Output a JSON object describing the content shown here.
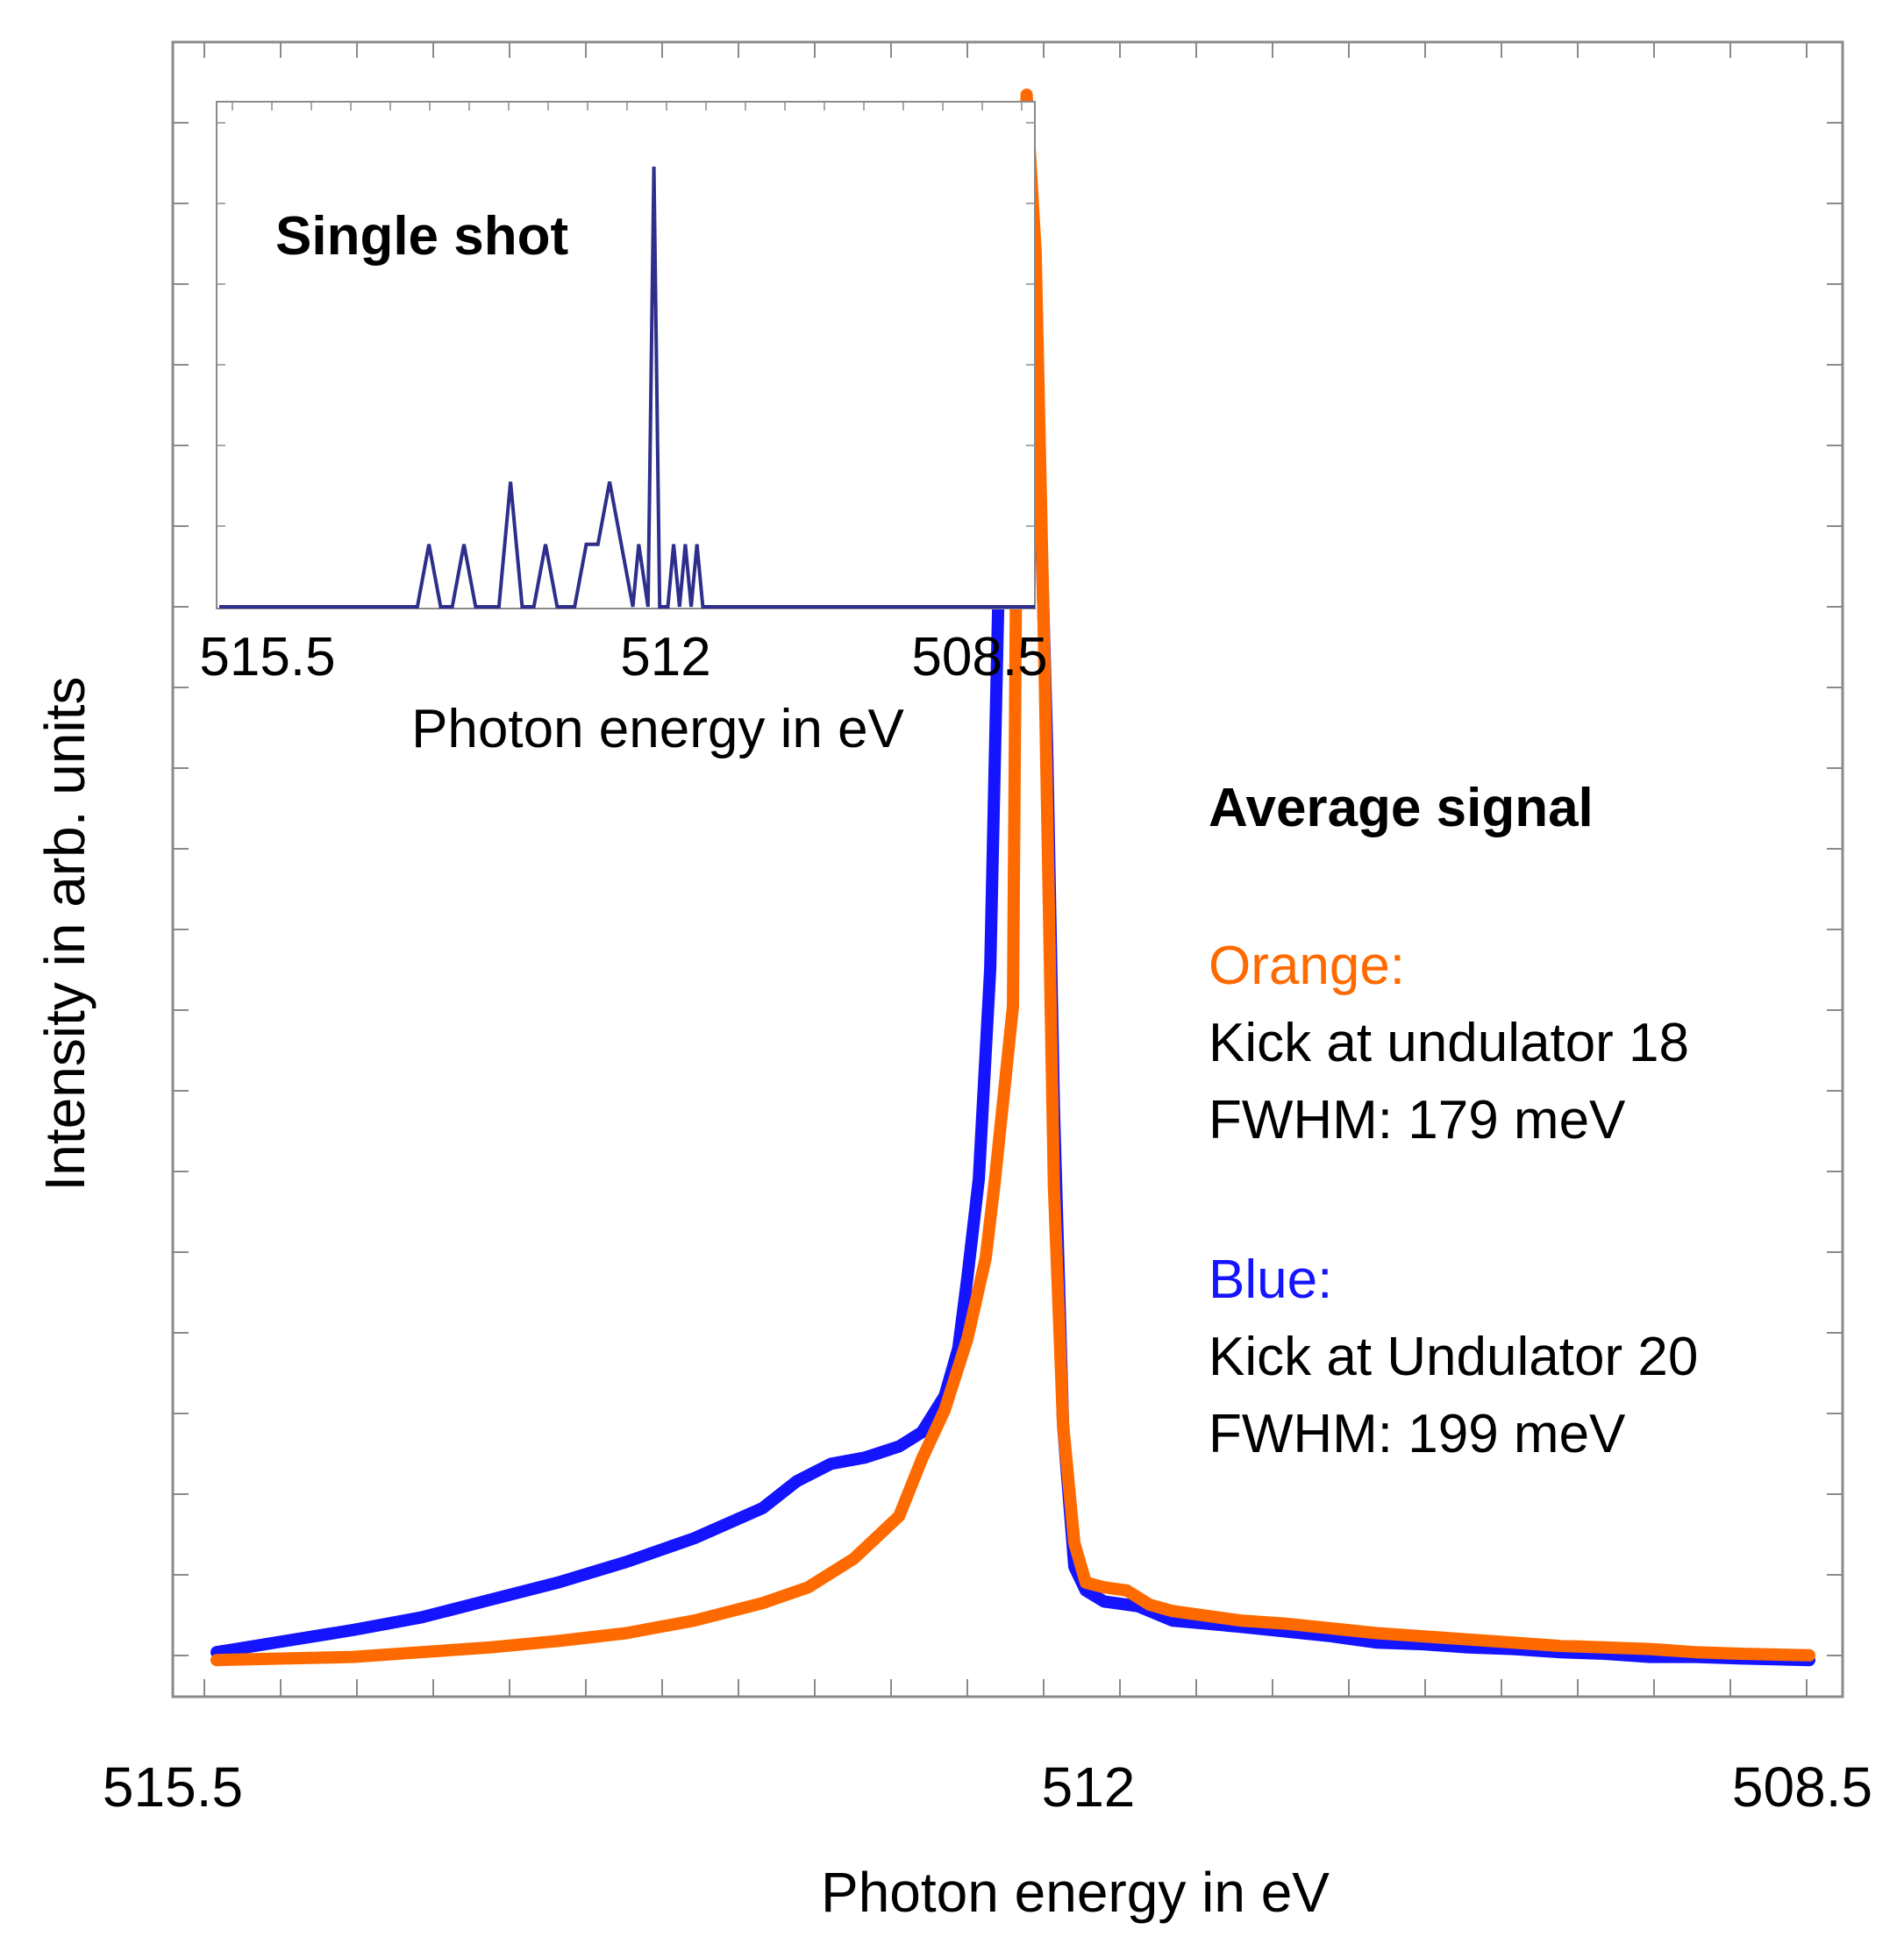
{
  "chart_data": [
    {
      "type": "line",
      "role": "main",
      "xlabel": "Photon energy in eV",
      "ylabel": "Intensity in arb. units",
      "xlim": [
        515.5,
        508.5
      ],
      "x_reversed": true,
      "ylim": [
        0,
        100
      ],
      "xticks": [
        "515.5",
        "512",
        "508.5"
      ],
      "y_tick_labels_shown": false,
      "grid": false,
      "legend": {
        "heading": "Average signal",
        "placement": "right",
        "entries": [
          {
            "label": "Orange:",
            "color": "#ff6a00",
            "lines": [
              "Kick at undulator 18",
              "FWHM: 179 meV"
            ]
          },
          {
            "label": "Blue:",
            "color": "#1414ff",
            "lines": [
              "Kick at Undulator 20",
              "FWHM: 199 meV"
            ]
          }
        ]
      },
      "series": [
        {
          "color": "#1414ff",
          "x": [
            515.5,
            515.2,
            514.9,
            514.6,
            514.3,
            514.0,
            513.7,
            513.4,
            513.1,
            512.95,
            512.8,
            512.65,
            512.5,
            512.4,
            512.3,
            512.24,
            512.2,
            512.15,
            512.1,
            512.05,
            512.0,
            511.95,
            511.9,
            511.85,
            511.82,
            511.78,
            511.73,
            511.68,
            511.6,
            511.45,
            511.3,
            511.15,
            511.0,
            510.8,
            510.6,
            510.4,
            510.2,
            510.0,
            509.8,
            509.6,
            509.4,
            509.2,
            509.0,
            508.8,
            508.5
          ],
          "y": [
            0.6,
            1.3,
            2.0,
            2.8,
            3.9,
            5.0,
            6.3,
            7.8,
            9.7,
            11.4,
            12.5,
            12.9,
            13.6,
            14.5,
            16.8,
            19.8,
            24.3,
            30.5,
            43.8,
            76.3,
            87.0,
            93.5,
            84.0,
            58.0,
            35.0,
            15.0,
            6.0,
            4.5,
            3.8,
            3.5,
            2.6,
            2.4,
            2.2,
            1.9,
            1.6,
            1.2,
            1.1,
            0.9,
            0.8,
            0.6,
            0.5,
            0.3,
            0.3,
            0.2,
            0.1
          ]
        },
        {
          "color": "#ff6a00",
          "x": [
            515.5,
            515.2,
            514.9,
            514.6,
            514.3,
            514.0,
            513.7,
            513.4,
            513.1,
            512.9,
            512.7,
            512.5,
            512.4,
            512.3,
            512.2,
            512.12,
            512.08,
            512.0,
            511.98,
            511.94,
            511.9,
            511.86,
            511.82,
            511.78,
            511.73,
            511.68,
            511.6,
            511.5,
            511.4,
            511.3,
            511.15,
            511.0,
            510.8,
            510.6,
            510.4,
            510.2,
            510.0,
            509.8,
            509.6,
            509.4,
            509.2,
            509.0,
            508.8,
            508.5
          ],
          "y": [
            0.1,
            0.2,
            0.3,
            0.6,
            0.9,
            1.3,
            1.8,
            2.6,
            3.7,
            4.7,
            6.5,
            9.2,
            12.8,
            15.9,
            20.4,
            25.5,
            30.3,
            41.4,
            81.0,
            99.0,
            89.0,
            62.0,
            30.0,
            15.0,
            7.5,
            5.0,
            4.7,
            4.5,
            3.6,
            3.2,
            2.9,
            2.6,
            2.4,
            2.1,
            1.8,
            1.6,
            1.4,
            1.2,
            1.0,
            0.9,
            0.8,
            0.6,
            0.5,
            0.4
          ]
        }
      ]
    },
    {
      "type": "line",
      "role": "inset",
      "title": "Single shot",
      "xlabel": "Photon energy in eV",
      "xlim": [
        515.5,
        508.5
      ],
      "x_reversed": true,
      "ylim": [
        0,
        100
      ],
      "xticks": [
        "515.5",
        "512",
        "508.5"
      ],
      "series": [
        {
          "color": "#2e2e8c",
          "x": [
            515.5,
            513.8,
            513.7,
            513.6,
            513.5,
            513.4,
            513.3,
            513.1,
            513.0,
            512.9,
            512.8,
            512.7,
            512.6,
            512.45,
            512.35,
            512.25,
            512.15,
            512.05,
            511.95,
            511.9,
            511.82,
            511.77,
            511.72,
            511.65,
            511.6,
            511.55,
            511.5,
            511.45,
            511.4,
            511.35,
            511.2,
            508.5
          ],
          "y": [
            0,
            0,
            14.2,
            0,
            0,
            14.2,
            0,
            0,
            28.4,
            0,
            0,
            14.2,
            0,
            0,
            14.2,
            14.2,
            28.4,
            14.2,
            0,
            14.2,
            0,
            100,
            0,
            0,
            14.2,
            0,
            14.2,
            0,
            14.2,
            0,
            0,
            0
          ]
        }
      ]
    }
  ]
}
